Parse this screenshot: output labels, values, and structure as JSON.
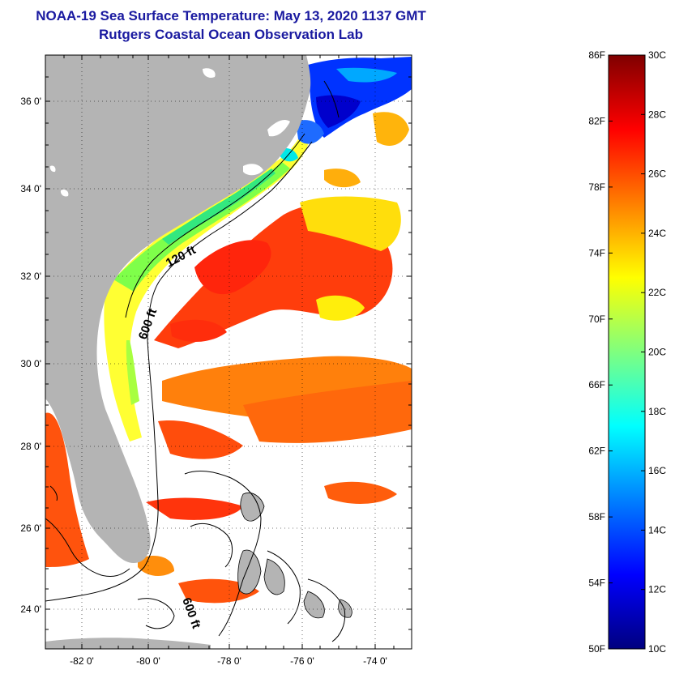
{
  "title": {
    "line1": "NOAA-19 Sea Surface Temperature:  May 13, 2020 1137 GMT",
    "line2": "Rutgers Coastal Ocean Observation Lab"
  },
  "map": {
    "lat_labels": [
      "36 0'",
      "34 0'",
      "32 0'",
      "30 0'",
      "28 0'",
      "26 0'",
      "24 0'"
    ],
    "lon_labels": [
      "-82 0'",
      "-80 0'",
      "-78 0'",
      "-76 0'",
      "-74 0'"
    ],
    "lat_range": [
      23.0,
      37.1
    ],
    "lon_range": [
      -83.0,
      -73.0
    ],
    "contour_labels": {
      "c120": "120 ft",
      "c600a": "600 ft",
      "c600b": "600 ft"
    },
    "colors": {
      "land": "#b4b4b4",
      "cloud": "#ffffff"
    }
  },
  "colorbar": {
    "fahrenheit_labels": [
      "86F",
      "82F",
      "78F",
      "74F",
      "70F",
      "66F",
      "62F",
      "58F",
      "54F",
      "50F"
    ],
    "celsius_labels": [
      "30C",
      "28C",
      "26C",
      "24C",
      "22C",
      "20C",
      "18C",
      "16C",
      "14C",
      "12C",
      "10C"
    ],
    "range_c": [
      10,
      30
    ],
    "palette": [
      "#00007f",
      "#0000ff",
      "#007fff",
      "#00ffff",
      "#7fff7f",
      "#ffff00",
      "#ff7f00",
      "#ff0000",
      "#7f0000"
    ]
  }
}
